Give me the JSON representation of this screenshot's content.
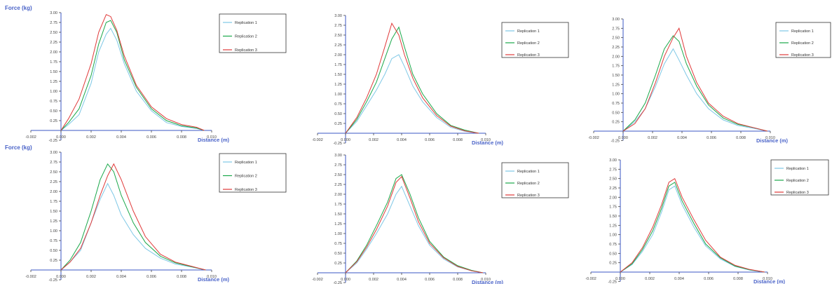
{
  "colors": {
    "rep1": "#7fc8e6",
    "rep2": "#1aa84a",
    "rep3": "#e03a3a",
    "axis": "#3b57c4",
    "label": "#4a63c8",
    "tick": "#444444"
  },
  "chart_data": [
    {
      "type": "line",
      "ylabel": "Force (kg)",
      "xlabel": "Distance (m)",
      "xlim": [
        -0.002,
        0.01
      ],
      "ylim": [
        -0.25,
        3.0
      ],
      "xticks": [
        "-0.002",
        "0.000",
        "0.002",
        "0.004",
        "0.006",
        "0.008",
        "0.010"
      ],
      "yticks": [
        "-0.25",
        "0.25",
        "0.50",
        "0.75",
        "1.00",
        "1.25",
        "1.50",
        "1.75",
        "2.00",
        "2.25",
        "2.50",
        "2.75",
        "3.00"
      ],
      "legend": [
        "Replication 1",
        "Replication 2",
        "Replication 3"
      ],
      "series": [
        {
          "name": "Replication 1",
          "color": "rep1",
          "x": [
            0.0,
            0.0005,
            0.0012,
            0.002,
            0.0025,
            0.003,
            0.0033,
            0.0037,
            0.0042,
            0.005,
            0.006,
            0.007,
            0.008,
            0.009,
            0.0095
          ],
          "y": [
            0.0,
            0.15,
            0.4,
            1.2,
            2.0,
            2.45,
            2.6,
            2.3,
            1.7,
            1.0,
            0.5,
            0.2,
            0.1,
            0.05,
            0.0
          ]
        },
        {
          "name": "Replication 2",
          "color": "rep2",
          "x": [
            0.0,
            0.0005,
            0.0012,
            0.002,
            0.0025,
            0.003,
            0.0033,
            0.0037,
            0.0042,
            0.005,
            0.006,
            0.007,
            0.008,
            0.009,
            0.0095
          ],
          "y": [
            0.0,
            0.2,
            0.55,
            1.4,
            2.2,
            2.75,
            2.8,
            2.5,
            1.8,
            1.1,
            0.55,
            0.25,
            0.12,
            0.06,
            0.0
          ]
        },
        {
          "name": "Replication 3",
          "color": "rep3",
          "x": [
            0.0,
            0.0005,
            0.0012,
            0.002,
            0.0025,
            0.003,
            0.0033,
            0.0037,
            0.0042,
            0.005,
            0.006,
            0.007,
            0.008,
            0.009,
            0.0095
          ],
          "y": [
            0.0,
            0.3,
            0.8,
            1.7,
            2.5,
            2.95,
            2.9,
            2.55,
            1.9,
            1.15,
            0.6,
            0.3,
            0.15,
            0.08,
            0.0
          ]
        }
      ]
    },
    {
      "type": "line",
      "ylabel": "",
      "xlabel": "Distance (m)",
      "xlim": [
        -0.002,
        0.01
      ],
      "ylim": [
        -0.25,
        3.0
      ],
      "xticks": [
        "-0.002",
        "0.000",
        "0.002",
        "0.004",
        "0.006",
        "0.008",
        "0.010"
      ],
      "yticks": [
        "-0.25",
        "0.25",
        "0.50",
        "0.75",
        "1.00",
        "1.25",
        "1.50",
        "1.75",
        "2.00",
        "2.25",
        "2.50",
        "2.75",
        "3.00"
      ],
      "legend": [
        "Replication 1",
        "Replication 2",
        "Replication 3"
      ],
      "series": [
        {
          "name": "Replication 1",
          "color": "rep1",
          "x": [
            0.0,
            0.0008,
            0.0015,
            0.0022,
            0.0028,
            0.0033,
            0.0038,
            0.0042,
            0.0048,
            0.0055,
            0.0065,
            0.0075,
            0.0085,
            0.0095
          ],
          "y": [
            0.0,
            0.3,
            0.7,
            1.1,
            1.5,
            1.9,
            2.0,
            1.7,
            1.2,
            0.8,
            0.4,
            0.15,
            0.05,
            0.0
          ]
        },
        {
          "name": "Replication 2",
          "color": "rep2",
          "x": [
            0.0,
            0.0008,
            0.0015,
            0.0022,
            0.0028,
            0.0033,
            0.0038,
            0.0042,
            0.0048,
            0.0055,
            0.0065,
            0.0075,
            0.0085,
            0.0095
          ],
          "y": [
            0.0,
            0.35,
            0.8,
            1.3,
            1.9,
            2.4,
            2.7,
            2.2,
            1.5,
            1.0,
            0.5,
            0.2,
            0.08,
            0.0
          ]
        },
        {
          "name": "Replication 3",
          "color": "rep3",
          "x": [
            0.0,
            0.0008,
            0.0015,
            0.0022,
            0.0028,
            0.0033,
            0.0038,
            0.0042,
            0.0048,
            0.0055,
            0.0065,
            0.0075,
            0.0085,
            0.0095
          ],
          "y": [
            0.0,
            0.4,
            0.9,
            1.5,
            2.2,
            2.8,
            2.5,
            2.0,
            1.4,
            0.9,
            0.45,
            0.18,
            0.06,
            0.0
          ]
        }
      ]
    },
    {
      "type": "line",
      "ylabel": "",
      "xlabel": "Distance (m)",
      "xlim": [
        -0.002,
        0.01
      ],
      "ylim": [
        -0.25,
        3.0
      ],
      "xticks": [
        "-0.002",
        "0.000",
        "0.002",
        "0.004",
        "0.006",
        "0.008",
        "0.010"
      ],
      "yticks": [
        "-0.25",
        "0.25",
        "0.50",
        "0.75",
        "1.00",
        "1.25",
        "1.50",
        "1.75",
        "2.00",
        "2.25",
        "2.50",
        "2.75",
        "3.00"
      ],
      "legend": [
        "Replication 1",
        "Replication 2",
        "Replication 3"
      ],
      "series": [
        {
          "name": "Replication 1",
          "color": "rep1",
          "x": [
            0.0,
            0.0008,
            0.0015,
            0.0022,
            0.0028,
            0.0034,
            0.0038,
            0.0043,
            0.005,
            0.0058,
            0.0068,
            0.0078,
            0.0088,
            0.0098
          ],
          "y": [
            0.0,
            0.25,
            0.6,
            1.2,
            1.8,
            2.2,
            1.9,
            1.5,
            1.0,
            0.6,
            0.3,
            0.15,
            0.08,
            0.0
          ]
        },
        {
          "name": "Replication 2",
          "color": "rep2",
          "x": [
            0.0,
            0.0008,
            0.0015,
            0.0022,
            0.0028,
            0.0034,
            0.0038,
            0.0043,
            0.005,
            0.0058,
            0.0068,
            0.0078,
            0.0088,
            0.0098
          ],
          "y": [
            0.0,
            0.3,
            0.75,
            1.5,
            2.2,
            2.55,
            2.4,
            1.8,
            1.2,
            0.7,
            0.35,
            0.18,
            0.1,
            0.0
          ]
        },
        {
          "name": "Replication 3",
          "color": "rep3",
          "x": [
            0.0,
            0.0008,
            0.0015,
            0.0022,
            0.0028,
            0.0034,
            0.0038,
            0.0043,
            0.005,
            0.0058,
            0.0068,
            0.0078,
            0.0088,
            0.0098
          ],
          "y": [
            0.0,
            0.2,
            0.6,
            1.3,
            2.0,
            2.5,
            2.75,
            2.0,
            1.3,
            0.75,
            0.4,
            0.2,
            0.1,
            0.0
          ]
        }
      ]
    },
    {
      "type": "line",
      "ylabel": "Force (kg)",
      "xlabel": "Distance (m)",
      "xlim": [
        -0.002,
        0.01
      ],
      "ylim": [
        -0.25,
        3.0
      ],
      "xticks": [
        "-0.002",
        "0.000",
        "0.002",
        "0.004",
        "0.006",
        "0.008",
        "0.010"
      ],
      "yticks": [
        "-0.25",
        "0.25",
        "0.50",
        "0.75",
        "1.00",
        "1.25",
        "1.50",
        "1.75",
        "2.00",
        "2.25",
        "2.50",
        "2.75",
        "3.00"
      ],
      "legend": [
        "Replication 1",
        "Replication 2",
        "Replication 3"
      ],
      "series": [
        {
          "name": "Replication 1",
          "color": "rep1",
          "x": [
            0.0,
            0.0006,
            0.0013,
            0.002,
            0.0026,
            0.0031,
            0.0035,
            0.004,
            0.0048,
            0.0056,
            0.0066,
            0.0076,
            0.0086,
            0.0096
          ],
          "y": [
            0.0,
            0.2,
            0.5,
            1.2,
            1.8,
            2.2,
            1.9,
            1.4,
            0.9,
            0.55,
            0.3,
            0.15,
            0.08,
            0.0
          ]
        },
        {
          "name": "Replication 2",
          "color": "rep2",
          "x": [
            0.0,
            0.0006,
            0.0013,
            0.002,
            0.0026,
            0.0031,
            0.0035,
            0.004,
            0.0048,
            0.0056,
            0.0066,
            0.0076,
            0.0086,
            0.0096
          ],
          "y": [
            0.0,
            0.25,
            0.7,
            1.5,
            2.3,
            2.7,
            2.5,
            1.9,
            1.2,
            0.7,
            0.35,
            0.18,
            0.09,
            0.0
          ]
        },
        {
          "name": "Replication 3",
          "color": "rep3",
          "x": [
            0.0,
            0.0006,
            0.0013,
            0.002,
            0.0026,
            0.0031,
            0.0035,
            0.004,
            0.0048,
            0.0056,
            0.0066,
            0.0076,
            0.0086,
            0.0096
          ],
          "y": [
            0.0,
            0.2,
            0.55,
            1.2,
            1.9,
            2.4,
            2.7,
            2.3,
            1.5,
            0.85,
            0.4,
            0.2,
            0.1,
            0.0
          ]
        }
      ]
    },
    {
      "type": "line",
      "ylabel": "",
      "xlabel": "Distance (m)",
      "xlim": [
        -0.002,
        0.01
      ],
      "ylim": [
        -0.25,
        3.0
      ],
      "xticks": [
        "-0.002",
        "0.000",
        "0.002",
        "0.004",
        "0.006",
        "0.008",
        "0.010"
      ],
      "yticks": [
        "-0.25",
        "0.25",
        "0.50",
        "0.75",
        "1.00",
        "1.25",
        "1.50",
        "1.75",
        "2.00",
        "2.25",
        "2.50",
        "2.75",
        "3.00"
      ],
      "legend": [
        "Replication 1",
        "Replication 2",
        "Replication 3"
      ],
      "series": [
        {
          "name": "Replication 1",
          "color": "rep1",
          "x": [
            0.0,
            0.0008,
            0.0015,
            0.0022,
            0.003,
            0.0036,
            0.004,
            0.0046,
            0.0052,
            0.006,
            0.007,
            0.008,
            0.009,
            0.0098
          ],
          "y": [
            0.0,
            0.25,
            0.6,
            1.0,
            1.5,
            2.0,
            2.2,
            1.7,
            1.2,
            0.7,
            0.35,
            0.15,
            0.05,
            0.0
          ]
        },
        {
          "name": "Replication 2",
          "color": "rep2",
          "x": [
            0.0,
            0.0008,
            0.0015,
            0.0022,
            0.003,
            0.0036,
            0.004,
            0.0046,
            0.0052,
            0.006,
            0.007,
            0.008,
            0.009,
            0.0098
          ],
          "y": [
            0.0,
            0.3,
            0.7,
            1.2,
            1.8,
            2.4,
            2.5,
            2.0,
            1.4,
            0.8,
            0.4,
            0.18,
            0.06,
            0.0
          ]
        },
        {
          "name": "Replication 3",
          "color": "rep3",
          "x": [
            0.0,
            0.0008,
            0.0015,
            0.0022,
            0.003,
            0.0036,
            0.004,
            0.0046,
            0.0052,
            0.006,
            0.007,
            0.008,
            0.009,
            0.0098
          ],
          "y": [
            0.0,
            0.28,
            0.65,
            1.1,
            1.7,
            2.3,
            2.45,
            1.9,
            1.3,
            0.75,
            0.38,
            0.16,
            0.05,
            0.0
          ]
        }
      ]
    },
    {
      "type": "line",
      "ylabel": "",
      "xlabel": "Distance (m)",
      "xlim": [
        -0.002,
        0.01
      ],
      "ylim": [
        -0.25,
        3.0
      ],
      "xticks": [
        "-0.002",
        "0.000",
        "0.002",
        "0.004",
        "0.006",
        "0.008",
        "0.010"
      ],
      "yticks": [
        "-0.25",
        "0.25",
        "0.50",
        "0.75",
        "1.00",
        "1.25",
        "1.50",
        "1.75",
        "2.00",
        "2.25",
        "2.50",
        "2.75",
        "3.00"
      ],
      "legend": [
        "Replication 1",
        "Replication 2",
        "Replication 3"
      ],
      "series": [
        {
          "name": "Replication 1",
          "color": "rep1",
          "x": [
            0.0,
            0.0008,
            0.0015,
            0.0022,
            0.0028,
            0.0033,
            0.0037,
            0.0042,
            0.005,
            0.0058,
            0.0068,
            0.0078,
            0.0088,
            0.0098
          ],
          "y": [
            0.0,
            0.2,
            0.55,
            1.0,
            1.6,
            2.2,
            2.3,
            1.8,
            1.2,
            0.7,
            0.35,
            0.15,
            0.05,
            0.0
          ]
        },
        {
          "name": "Replication 2",
          "color": "rep2",
          "x": [
            0.0,
            0.0008,
            0.0015,
            0.0022,
            0.0028,
            0.0033,
            0.0037,
            0.0042,
            0.005,
            0.0058,
            0.0068,
            0.0078,
            0.0088,
            0.0098
          ],
          "y": [
            0.0,
            0.22,
            0.6,
            1.1,
            1.7,
            2.3,
            2.4,
            1.9,
            1.3,
            0.75,
            0.38,
            0.16,
            0.06,
            0.0
          ]
        },
        {
          "name": "Replication 3",
          "color": "rep3",
          "x": [
            0.0,
            0.0008,
            0.0015,
            0.0022,
            0.0028,
            0.0033,
            0.0037,
            0.0042,
            0.005,
            0.0058,
            0.0068,
            0.0078,
            0.0088,
            0.0098
          ],
          "y": [
            0.0,
            0.25,
            0.65,
            1.2,
            1.8,
            2.4,
            2.5,
            2.0,
            1.4,
            0.85,
            0.4,
            0.18,
            0.07,
            0.0
          ]
        }
      ]
    }
  ]
}
